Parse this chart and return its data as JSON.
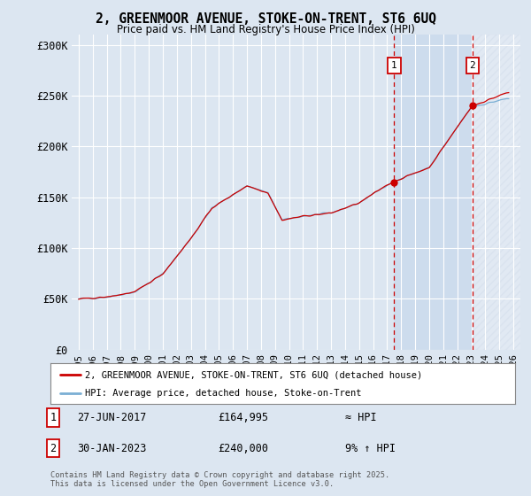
{
  "title": "2, GREENMOOR AVENUE, STOKE-ON-TRENT, ST6 6UQ",
  "subtitle": "Price paid vs. HM Land Registry's House Price Index (HPI)",
  "background_color": "#dce6f1",
  "plot_bg_color": "#dce6f1",
  "ylabel_ticks": [
    "£0",
    "£50K",
    "£100K",
    "£150K",
    "£200K",
    "£250K",
    "£300K"
  ],
  "ytick_values": [
    0,
    50000,
    100000,
    150000,
    200000,
    250000,
    300000
  ],
  "ylim": [
    0,
    310000
  ],
  "xlim_start": 1994.5,
  "xlim_end": 2026.5,
  "hpi_line_color": "#7bafd4",
  "price_line_color": "#cc0000",
  "shade_color": "#c8d8ec",
  "vline_color": "#cc0000",
  "sale1_year": 2017.49,
  "sale1_price": 164995,
  "sale2_year": 2023.08,
  "sale2_price": 240000,
  "legend_line1": "2, GREENMOOR AVENUE, STOKE-ON-TRENT, ST6 6UQ (detached house)",
  "legend_line2": "HPI: Average price, detached house, Stoke-on-Trent",
  "note1_label": "1",
  "note1_date": "27-JUN-2017",
  "note1_price": "£164,995",
  "note1_hpi": "≈ HPI",
  "note2_label": "2",
  "note2_date": "30-JAN-2023",
  "note2_price": "£240,000",
  "note2_hpi": "9% ↑ HPI",
  "footer": "Contains HM Land Registry data © Crown copyright and database right 2025.\nThis data is licensed under the Open Government Licence v3.0."
}
